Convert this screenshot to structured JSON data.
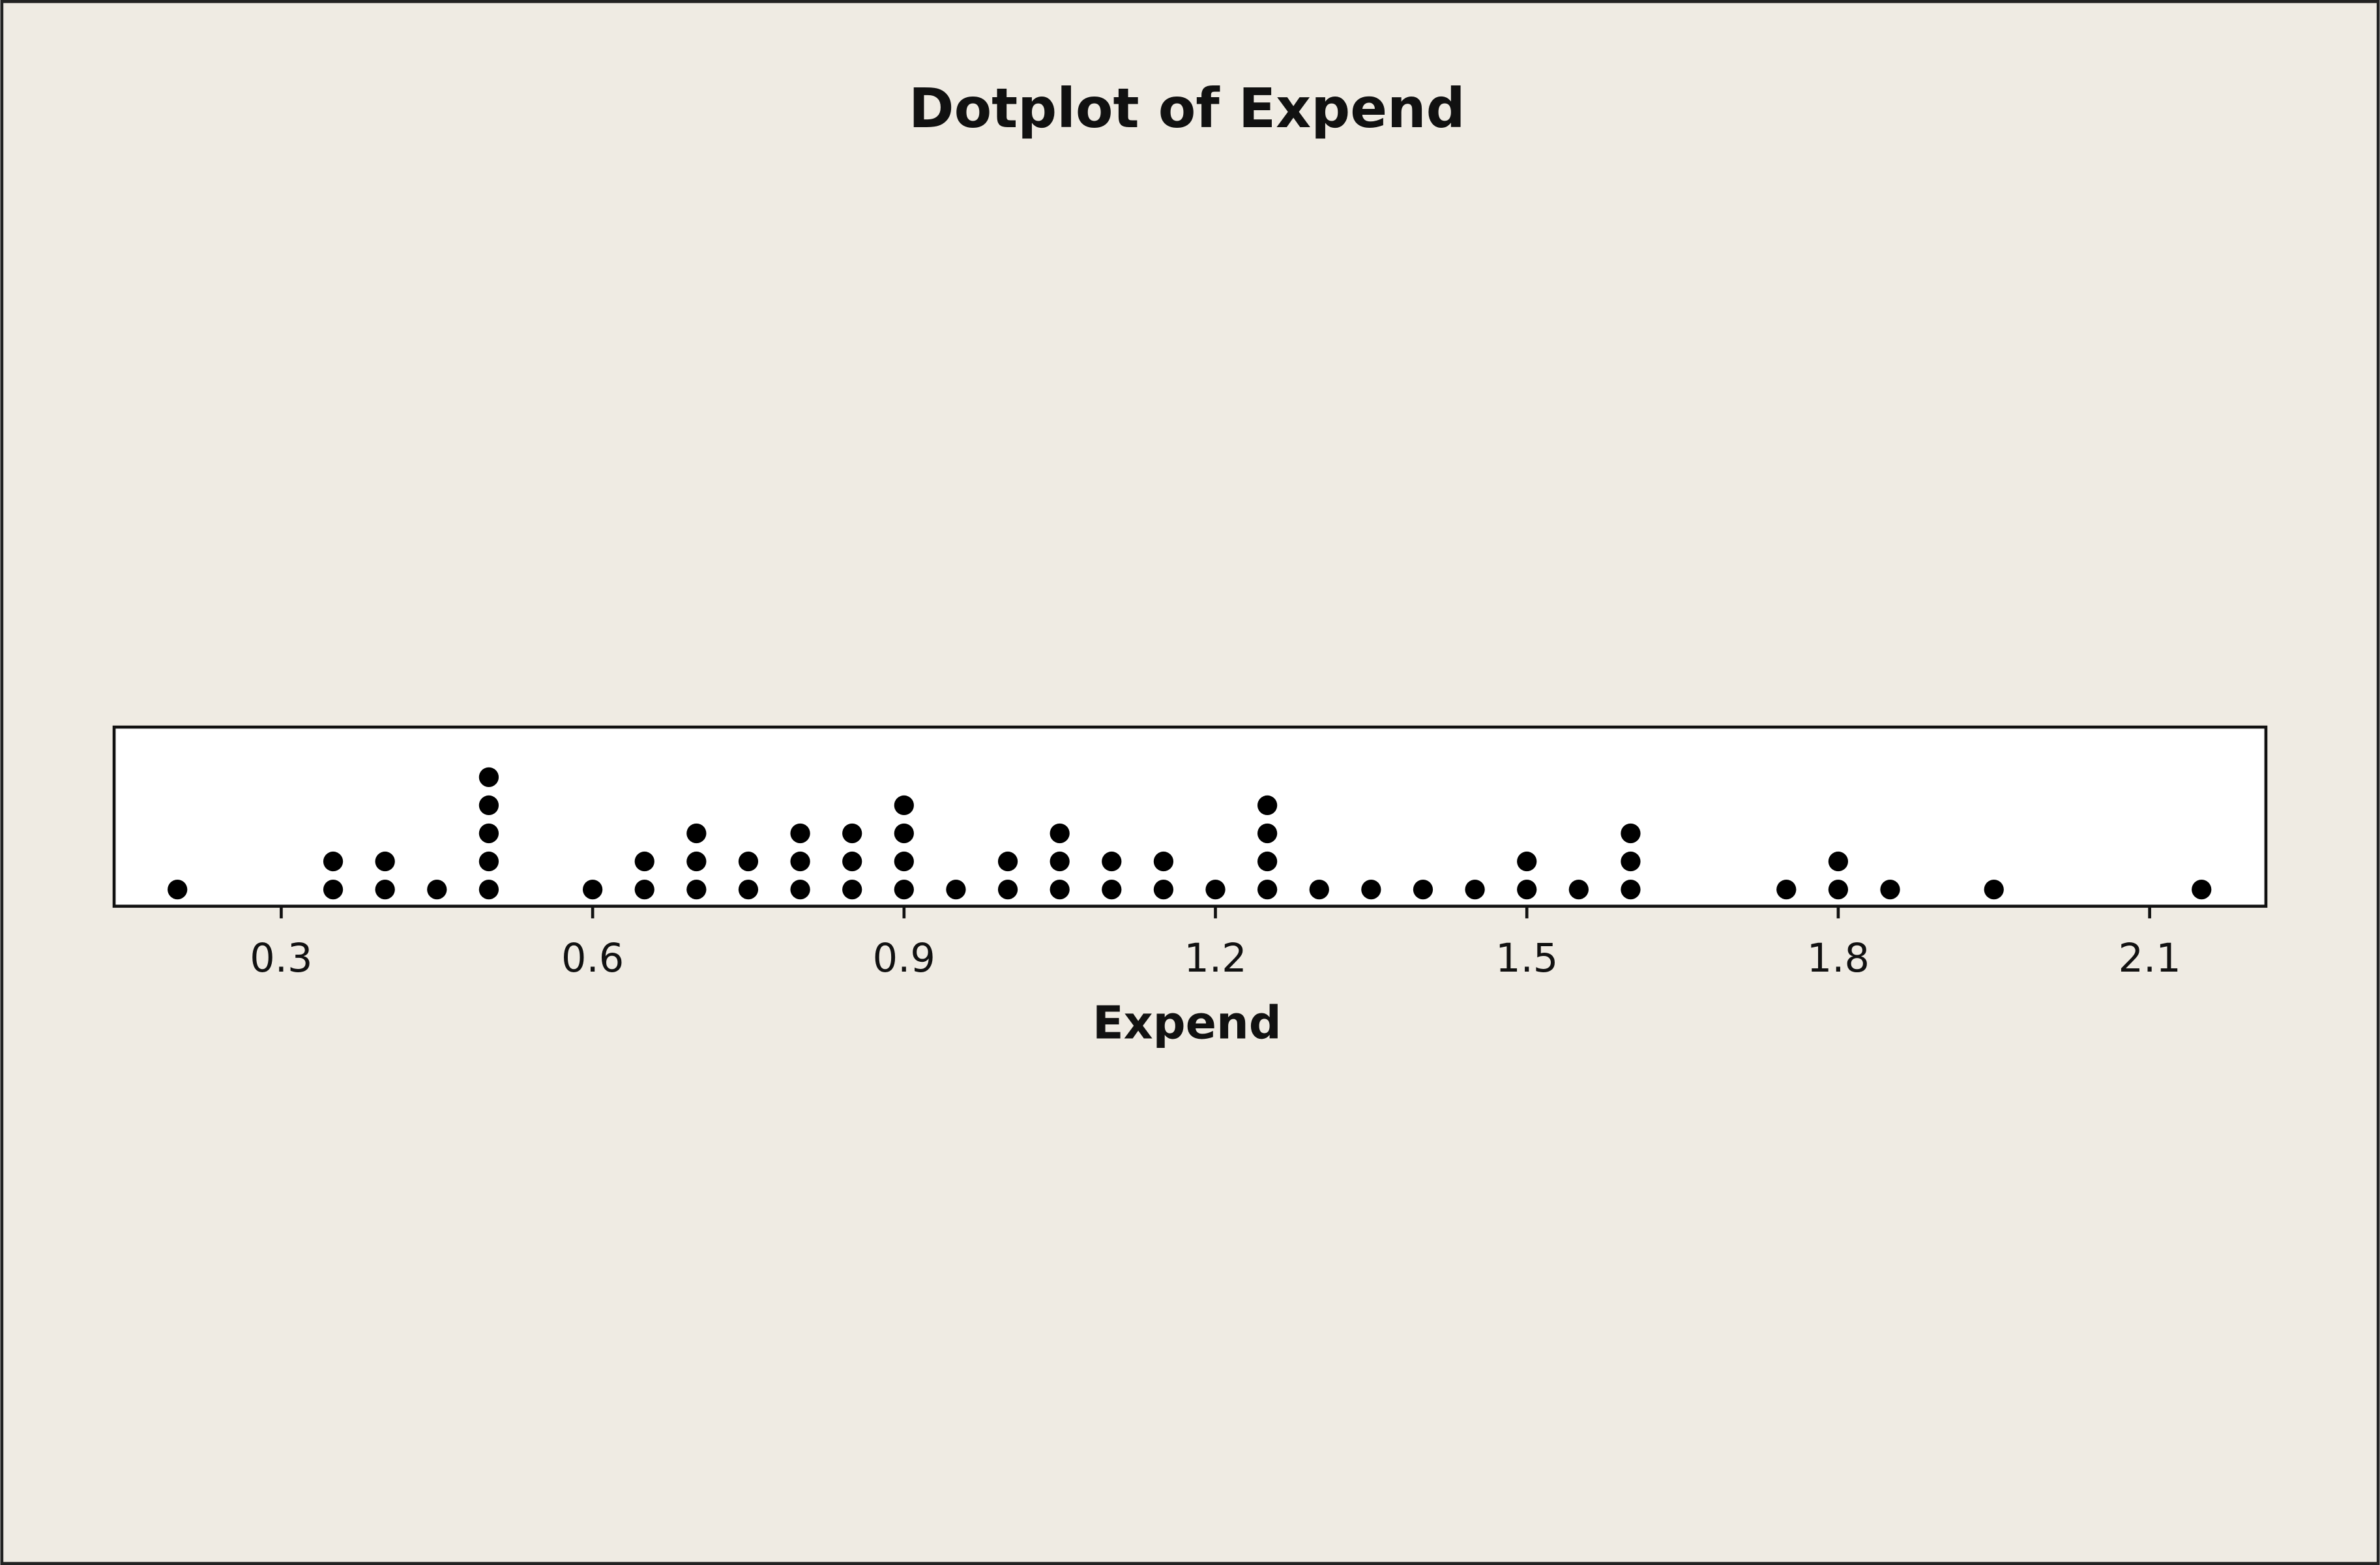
{
  "chart_data": {
    "type": "dotplot",
    "title": "Dotplot of Expend",
    "x_label": "Expend",
    "values": [
      0.2,
      0.35,
      0.35,
      0.4,
      0.4,
      0.45,
      0.5,
      0.5,
      0.5,
      0.5,
      0.5,
      0.6,
      0.65,
      0.65,
      0.7,
      0.7,
      0.7,
      0.75,
      0.75,
      0.8,
      0.8,
      0.8,
      0.85,
      0.85,
      0.85,
      0.9,
      0.9,
      0.9,
      0.9,
      0.95,
      1.0,
      1.0,
      1.05,
      1.05,
      1.05,
      1.1,
      1.1,
      1.15,
      1.15,
      1.2,
      1.25,
      1.25,
      1.25,
      1.25,
      1.3,
      1.35,
      1.4,
      1.45,
      1.5,
      1.5,
      1.55,
      1.6,
      1.6,
      1.6,
      1.75,
      1.8,
      1.8,
      1.85,
      1.95,
      2.15
    ],
    "color": "#000000",
    "xlim": [
      0.139,
      2.212
    ],
    "xticks": [
      0.3,
      0.6,
      0.9,
      1.2,
      1.5,
      1.8,
      2.1
    ]
  }
}
